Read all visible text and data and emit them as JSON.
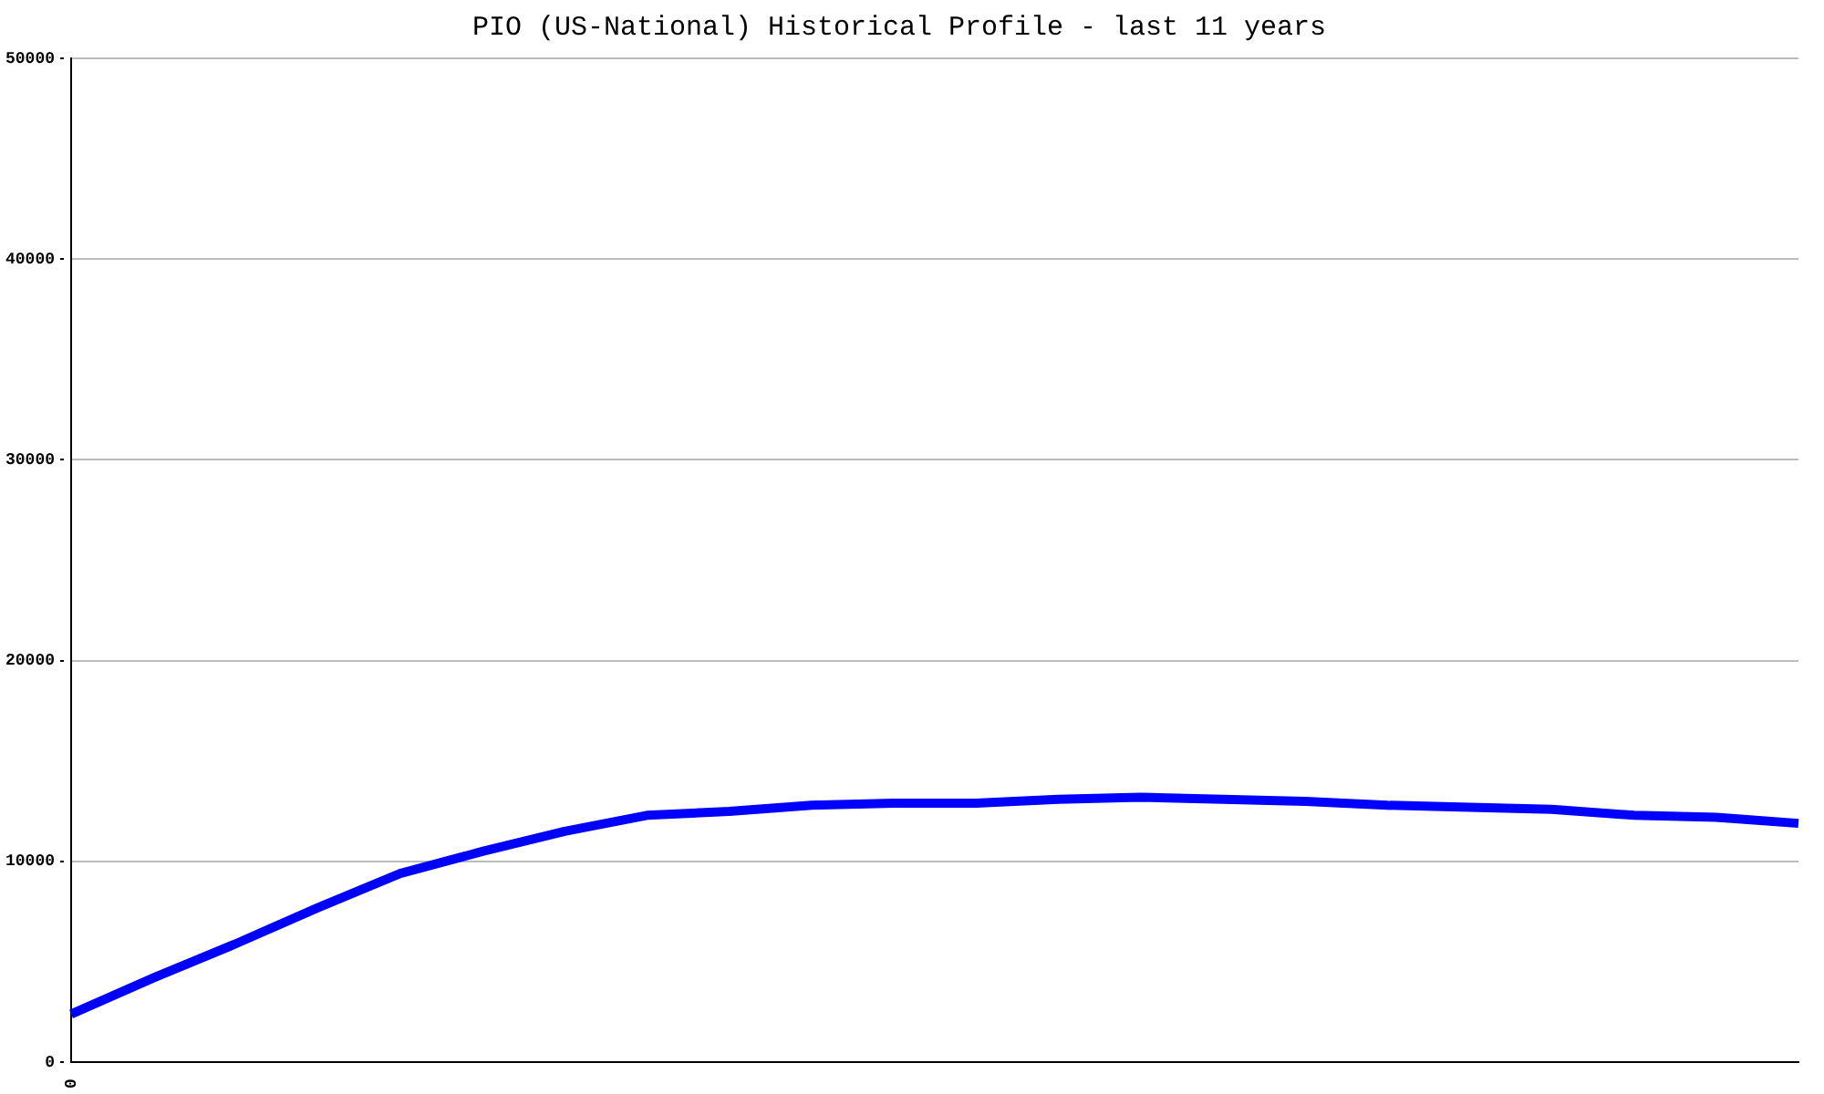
{
  "chart_data": {
    "type": "line",
    "title": "PIO (US-National) Historical Profile - last 11 years",
    "categories": [
      "0",
      null,
      null,
      null,
      null,
      null,
      null,
      null,
      null,
      null,
      null,
      null,
      null,
      null,
      null,
      null,
      null,
      null,
      null,
      null,
      null,
      null
    ],
    "series": [
      {
        "color": "#0000ff",
        "values": [
          2400,
          4200,
          5900,
          7700,
          9400,
          10500,
          11500,
          12300,
          12500,
          12800,
          12900,
          12900,
          13100,
          13200,
          13100,
          13000,
          12800,
          12700,
          12600,
          12300,
          12200,
          11900
        ]
      }
    ],
    "ylim": [
      0,
      50000
    ],
    "yticks": [
      0,
      10000,
      20000,
      30000,
      40000,
      50000
    ],
    "grid": "y",
    "legend": false,
    "marker": "none",
    "line_style": "solid"
  }
}
